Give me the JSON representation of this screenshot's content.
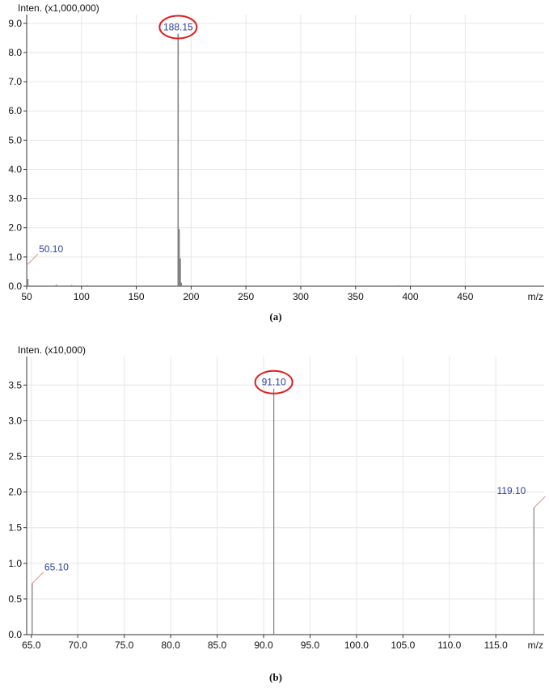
{
  "colors": {
    "grid": "#e6e6e6",
    "axis": "#333333",
    "peak": "#808080",
    "label": "#2b3f9e",
    "leader": "#e8908a",
    "circle": "#e02020"
  },
  "chart_data": [
    {
      "type": "bar",
      "caption": "(a)",
      "ylabel": "Inten. (x1,000,000)",
      "xlabel": "m/z",
      "xlim": [
        50,
        522
      ],
      "ylim": [
        0,
        9.3
      ],
      "xticks": [
        50,
        100,
        150,
        200,
        250,
        300,
        350,
        400,
        450
      ],
      "xtick_labels": [
        "50",
        "100",
        "150",
        "200",
        "250",
        "300",
        "350",
        "400",
        "450"
      ],
      "yticks": [
        0,
        1,
        2,
        3,
        4,
        5,
        6,
        7,
        8,
        9
      ],
      "ytick_labels": [
        "0.0",
        "1.0",
        "2.0",
        "3.0",
        "4.0",
        "5.0",
        "6.0",
        "7.0",
        "8.0",
        "9.0"
      ],
      "grid": true,
      "peaks": [
        {
          "x": 50.1,
          "y": 0.72,
          "label": "50.10",
          "circled": false
        },
        {
          "x": 51.0,
          "y": 0.25
        },
        {
          "x": 77.0,
          "y": 0.05
        },
        {
          "x": 91.0,
          "y": 0.04
        },
        {
          "x": 105.0,
          "y": 0.03
        },
        {
          "x": 188.15,
          "y": 8.65,
          "label": "188.15",
          "circled": true
        },
        {
          "x": 189.1,
          "y": 1.95
        },
        {
          "x": 190.1,
          "y": 0.95
        },
        {
          "x": 191.0,
          "y": 0.12
        },
        {
          "x": 389.0,
          "y": 0.03
        }
      ]
    },
    {
      "type": "bar",
      "caption": "(b)",
      "ylabel": "Inten. (x10,000)",
      "xlabel": "m/z",
      "xlim": [
        64.5,
        120.2
      ],
      "ylim": [
        0,
        3.9
      ],
      "xticks": [
        65,
        70,
        75,
        80,
        85,
        90,
        95,
        100,
        105,
        110,
        115
      ],
      "xtick_labels": [
        "65.0",
        "70.0",
        "75.0",
        "80.0",
        "85.0",
        "90.0",
        "95.0",
        "100.0",
        "105.0",
        "110.0",
        "115.0"
      ],
      "yticks": [
        0,
        0.5,
        1,
        1.5,
        2,
        2.5,
        3,
        3.5
      ],
      "ytick_labels": [
        "0.0",
        "0.5",
        "1.0",
        "1.5",
        "2.0",
        "2.5",
        "3.0",
        "3.5"
      ],
      "grid": true,
      "peaks": [
        {
          "x": 65.1,
          "y": 0.72,
          "label": "65.10",
          "circled": false
        },
        {
          "x": 91.1,
          "y": 3.45,
          "label": "91.10",
          "circled": true
        },
        {
          "x": 119.1,
          "y": 1.78,
          "label": "119.10",
          "circled": false
        }
      ]
    }
  ]
}
